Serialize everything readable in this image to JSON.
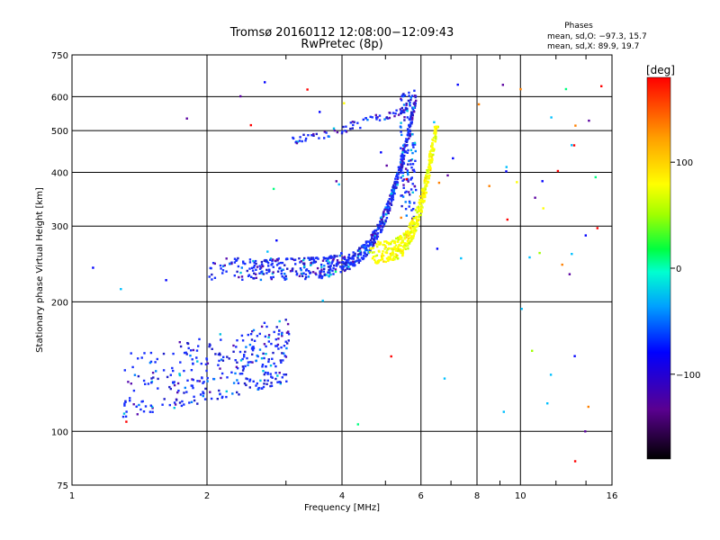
{
  "title_line1": "Tromsø 20160112 12:08:00−12:09:43",
  "title_line2": "RwPretec (8p)",
  "phases_header": "Phases",
  "phases_o": "mean, sd,O: −97.3, 15.7",
  "phases_x": "mean, sd,X:  89.9, 19.7",
  "colorbar_unit": "[deg]",
  "chart_data": {
    "type": "scatter",
    "title": "Tromsø 20160112 12:08:00−12:09:43",
    "subtitle": "RwPretec (8p)",
    "xlabel": "Frequency [MHz]",
    "ylabel": "Stationary phase Virtual Height [km]",
    "xscale": "log",
    "yscale": "log",
    "xlim": [
      1,
      16
    ],
    "ylim": [
      75,
      750
    ],
    "xticks": [
      1,
      2,
      4,
      6,
      8,
      10,
      16
    ],
    "xtick_labels": [
      "1",
      "2",
      "4",
      "6",
      "8",
      "10",
      "16"
    ],
    "yticks": [
      75,
      100,
      200,
      300,
      400,
      500,
      600,
      750
    ],
    "ytick_labels": [
      "75",
      "100",
      "200",
      "300",
      "400",
      "500",
      "600",
      "750"
    ],
    "grid": true,
    "colorbar": {
      "label": "[deg]",
      "range": [
        -180,
        180
      ],
      "ticks": [
        100,
        0,
        -100
      ],
      "tick_labels": [
        "100",
        "0",
        "−100"
      ]
    },
    "traces": [
      {
        "kind": "E-region echoes",
        "x_range": [
          1.3,
          3.05
        ],
        "y_min_range": [
          105,
          140
        ],
        "y_max_range": [
          118,
          185
        ],
        "phase_deg": -100
      },
      {
        "kind": "F-region O-mode",
        "x_range": [
          2.0,
          5.85
        ],
        "y_base": 235,
        "y_max": 640,
        "phase_deg": -100
      },
      {
        "kind": "F-region X-mode",
        "x_range": [
          4.6,
          6.55
        ],
        "y_base": 258,
        "y_max": 500,
        "phase_deg": 90
      },
      {
        "kind": "F2 multiple echo",
        "x_range": [
          3.1,
          5.7
        ],
        "y_range": [
          470,
          580
        ],
        "phase_deg": -100
      }
    ]
  }
}
